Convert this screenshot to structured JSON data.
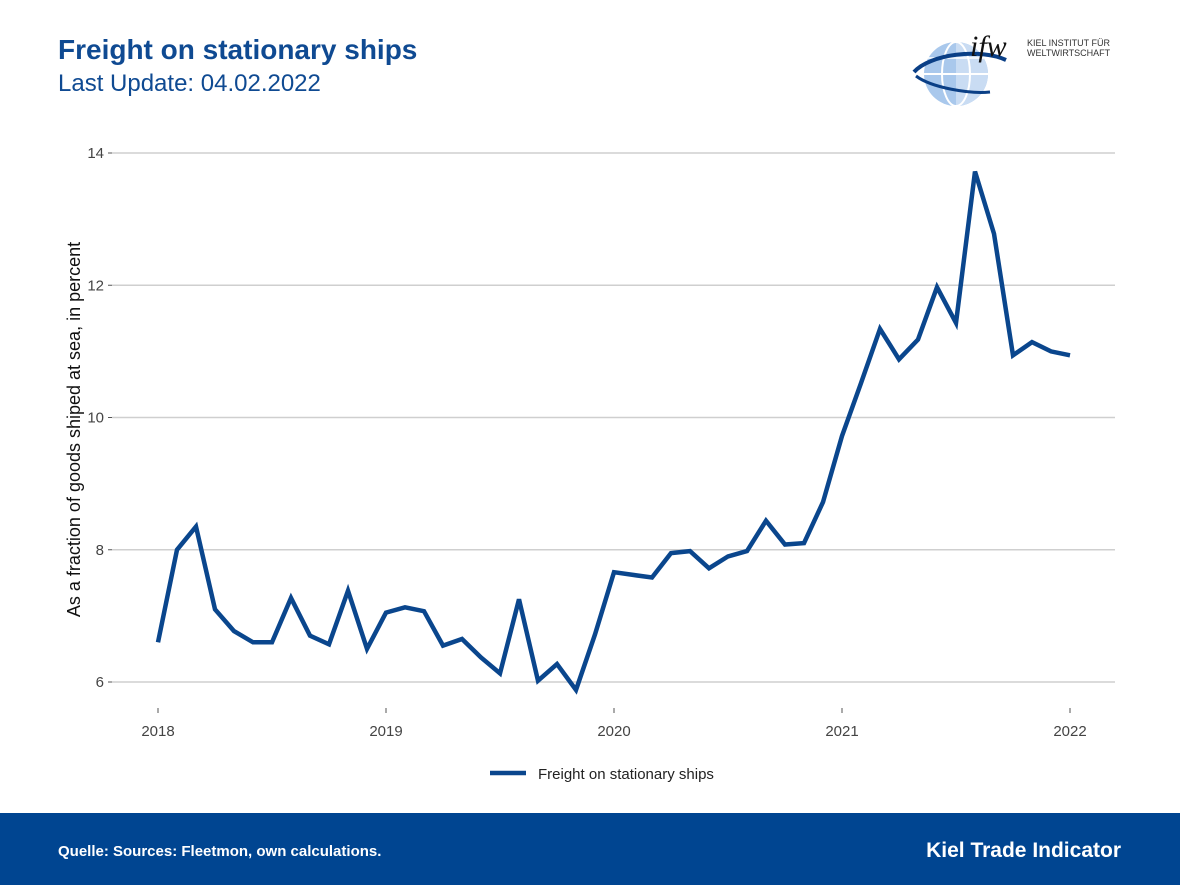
{
  "header": {
    "title": "Freight on stationary ships",
    "subtitle": "Last Update: 04.02.2022"
  },
  "logo": {
    "text": "ifw",
    "institute_line1": "KIEL INSTITUT FÜR",
    "institute_line2": "WELTWIRTSCHAFT",
    "icon": "globe-icon"
  },
  "chart_data": {
    "type": "line",
    "ylabel": "As a fraction of goods shiped at sea, in percent",
    "xlabel": "",
    "xlim": [
      2018.0,
      2022.0
    ],
    "ylim": [
      5.7,
      14.0
    ],
    "x_ticks": [
      2018,
      2019,
      2020,
      2021,
      2022
    ],
    "x_tick_labels": [
      "2018",
      "2019",
      "2020",
      "2021",
      "2022"
    ],
    "y_ticks": [
      6,
      8,
      10,
      12,
      14
    ],
    "y_tick_labels": [
      "6",
      "8",
      "10",
      "12",
      "14"
    ],
    "grid": "horizontal",
    "legend": "bottom",
    "color": "#0a468d",
    "series": [
      {
        "name": "Freight on stationary ships",
        "x": [
          "2018-01",
          "2018-02",
          "2018-03",
          "2018-04",
          "2018-05",
          "2018-06",
          "2018-07",
          "2018-08",
          "2018-09",
          "2018-10",
          "2018-11",
          "2018-12",
          "2019-01",
          "2019-02",
          "2019-03",
          "2019-04",
          "2019-05",
          "2019-06",
          "2019-07",
          "2019-08",
          "2019-09",
          "2019-10",
          "2019-11",
          "2019-12",
          "2020-01",
          "2020-02",
          "2020-03",
          "2020-04",
          "2020-05",
          "2020-06",
          "2020-07",
          "2020-08",
          "2020-09",
          "2020-10",
          "2020-11",
          "2020-12",
          "2021-01",
          "2021-02",
          "2021-03",
          "2021-04",
          "2021-05",
          "2021-06",
          "2021-07",
          "2021-08",
          "2021-09",
          "2021-10",
          "2021-11",
          "2021-12",
          "2022-01"
        ],
        "values": [
          6.6,
          8.0,
          8.35,
          7.1,
          6.77,
          6.6,
          6.6,
          7.27,
          6.7,
          6.57,
          7.38,
          6.5,
          7.05,
          7.13,
          7.07,
          6.55,
          6.65,
          6.37,
          6.13,
          7.25,
          6.02,
          6.27,
          5.88,
          6.72,
          7.66,
          7.62,
          7.58,
          7.95,
          7.98,
          7.72,
          7.9,
          7.98,
          8.44,
          8.08,
          8.1,
          8.72,
          9.72,
          10.52,
          11.34,
          10.88,
          11.18,
          11.97,
          11.43,
          13.72,
          12.78,
          10.94,
          11.14,
          11.0,
          10.94
        ]
      }
    ]
  },
  "footer": {
    "source": "Quelle: Sources: Fleetmon, own calculations.",
    "brand": "Kiel Trade Indicator"
  }
}
